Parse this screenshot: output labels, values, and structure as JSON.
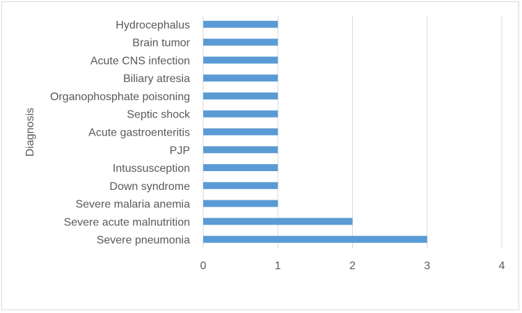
{
  "chart_data": {
    "type": "bar",
    "orientation": "horizontal",
    "categories": [
      "Severe pneumonia",
      "Severe acute malnutrition",
      "Severe malaria anemia",
      "Down syndrome",
      "Intussusception",
      "PJP",
      "Acute gastroenteritis",
      "Septic shock",
      "Organophosphate poisoning",
      "Biliary atresia",
      "Acute CNS infection",
      "Brain tumor",
      "Hydrocephalus"
    ],
    "values": [
      3,
      2,
      1,
      1,
      1,
      1,
      1,
      1,
      1,
      1,
      1,
      1,
      1
    ],
    "title": "",
    "xlabel": "",
    "ylabel": "Diagnosis",
    "xlim": [
      0,
      4
    ],
    "xticks": [
      "0",
      "1",
      "2",
      "3",
      "4"
    ],
    "grid": "vertical",
    "legend": "none",
    "bar_color": "#5b9bd5",
    "grid_color": "#d9d9d9"
  }
}
